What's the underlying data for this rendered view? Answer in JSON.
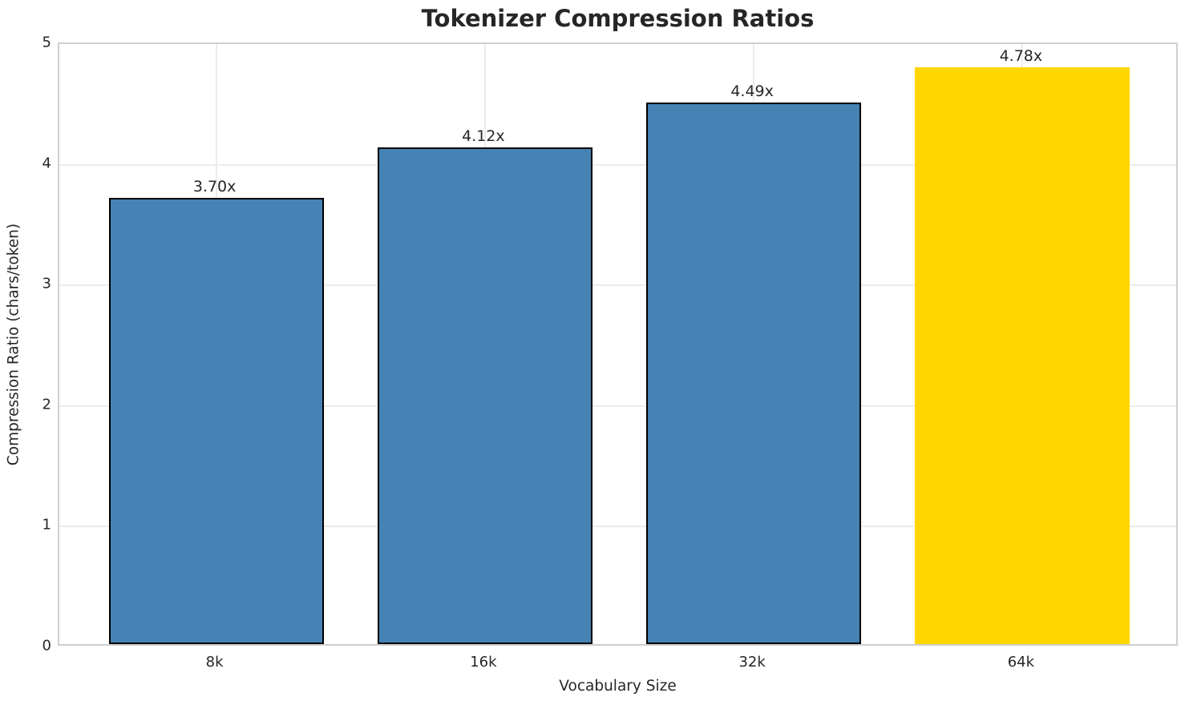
{
  "chart_data": {
    "type": "bar",
    "title": "Tokenizer Compression Ratios",
    "xlabel": "Vocabulary Size",
    "ylabel": "Compression Ratio (chars/token)",
    "categories": [
      "8k",
      "16k",
      "32k",
      "64k"
    ],
    "values": [
      3.7,
      4.12,
      4.49,
      4.78
    ],
    "value_labels": [
      "3.70x",
      "4.12x",
      "4.49x",
      "4.78x"
    ],
    "ylim": [
      0,
      5
    ],
    "yticks": [
      0,
      1,
      2,
      3,
      4,
      5
    ],
    "grid": "both",
    "legend": "none",
    "bar_color": "#4682b4",
    "highlight_color": "#ffd700",
    "highlight_index": 3,
    "bar_edge_color": "#000000",
    "grid_color": "#ececec",
    "spine_color": "#cfcfcf",
    "text_color": "#262626"
  }
}
